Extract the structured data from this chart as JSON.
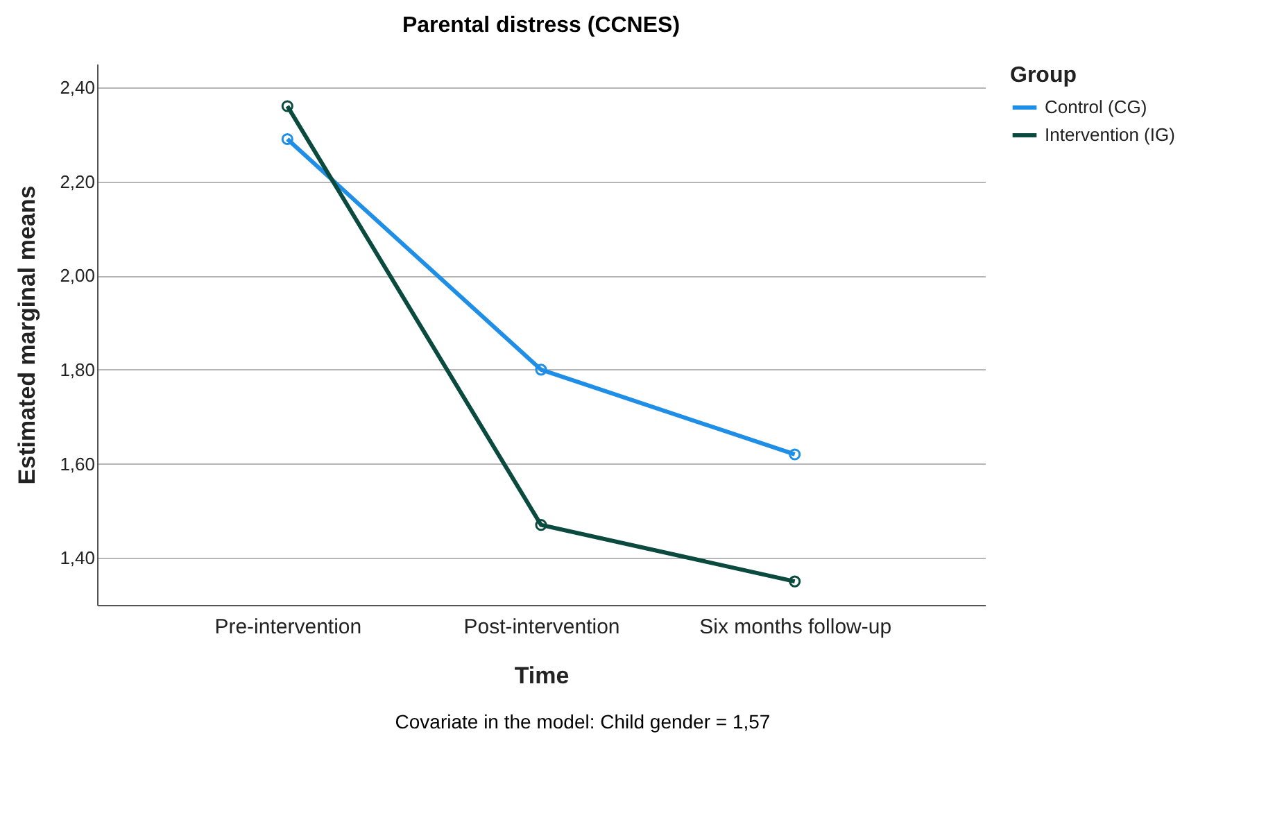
{
  "chart_data": {
    "type": "line",
    "title": "Parental distress (CCNES)",
    "xlabel": "Time",
    "ylabel": "Estimated marginal means",
    "legend_title": "Group",
    "categories": [
      "Pre-intervention",
      "Post-intervention",
      "Six months follow-up"
    ],
    "series": [
      {
        "name": "Control (CG)",
        "color": "#1e8ee6",
        "values": [
          2.29,
          1.8,
          1.62
        ]
      },
      {
        "name": "Intervention (IG)",
        "color": "#0b4a3e",
        "values": [
          2.36,
          1.47,
          1.35
        ]
      }
    ],
    "ylim": [
      1.3,
      2.45
    ],
    "yticks": [
      {
        "value": 1.4,
        "label": "1,40"
      },
      {
        "value": 1.6,
        "label": "1,60"
      },
      {
        "value": 1.8,
        "label": "1,80"
      },
      {
        "value": 2.0,
        "label": "2,00"
      },
      {
        "value": 2.2,
        "label": "2,20"
      },
      {
        "value": 2.4,
        "label": "2,40"
      }
    ],
    "grid": "y",
    "legend": "top right",
    "marker": "circle",
    "line_style": "solid",
    "annotations": [
      "Covariate in the model: Child gender = 1,57"
    ]
  }
}
